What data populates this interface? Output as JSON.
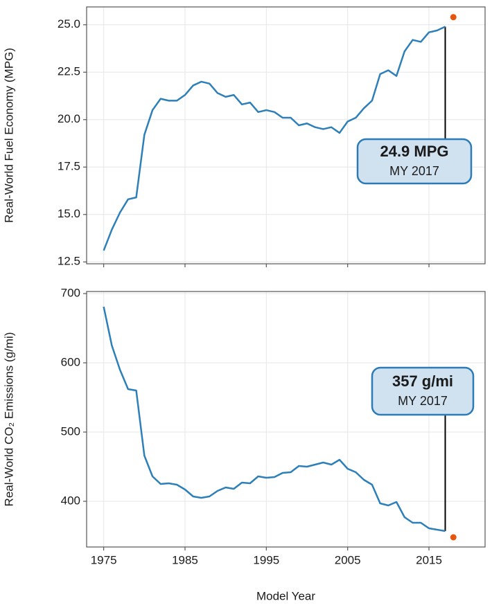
{
  "chart_data": [
    {
      "type": "line",
      "y_label": "Real-World Fuel Economy (MPG)",
      "x": [
        1975,
        1976,
        1977,
        1978,
        1979,
        1980,
        1981,
        1982,
        1983,
        1984,
        1985,
        1986,
        1987,
        1988,
        1989,
        1990,
        1991,
        1992,
        1993,
        1994,
        1995,
        1996,
        1997,
        1998,
        1999,
        2000,
        2001,
        2002,
        2003,
        2004,
        2005,
        2006,
        2007,
        2008,
        2009,
        2010,
        2011,
        2012,
        2013,
        2014,
        2015,
        2016,
        2017
      ],
      "series": [
        {
          "color": "#2c7fb8",
          "values": [
            13.1,
            14.2,
            15.1,
            15.8,
            15.9,
            19.2,
            20.5,
            21.1,
            21.0,
            21.0,
            21.3,
            21.8,
            22.0,
            21.9,
            21.4,
            21.2,
            21.3,
            20.8,
            20.9,
            20.4,
            20.5,
            20.4,
            20.1,
            20.1,
            19.7,
            19.8,
            19.6,
            19.5,
            19.6,
            19.3,
            19.9,
            20.1,
            20.6,
            21.0,
            22.4,
            22.6,
            22.3,
            23.6,
            24.2,
            24.1,
            24.6,
            24.7,
            24.9
          ]
        }
      ],
      "highlight": {
        "x": 2018,
        "y": 25.4,
        "color": "#e6550d"
      },
      "annotation": {
        "title": "24.9 MPG",
        "subtitle": "MY 2017"
      },
      "xlim": [
        1972.9,
        2021.9
      ],
      "xticks": [
        1975,
        1985,
        1995,
        2005,
        2015
      ],
      "show_xtick_labels": false,
      "ylim": [
        12.4,
        25.94
      ],
      "yticks": [
        12.5,
        {
          "value": 15,
          "label": "15.0"
        },
        17.5,
        {
          "value": 20,
          "label": "20.0"
        },
        22.5,
        {
          "value": 25,
          "label": "25.0"
        }
      ],
      "grid": true
    },
    {
      "type": "line",
      "y_label": "Real-World CO₂ Emissions (g/mi)",
      "x_label": "Model Year",
      "x": [
        1975,
        1976,
        1977,
        1978,
        1979,
        1980,
        1981,
        1982,
        1983,
        1984,
        1985,
        1986,
        1987,
        1988,
        1989,
        1990,
        1991,
        1992,
        1993,
        1994,
        1995,
        1996,
        1997,
        1998,
        1999,
        2000,
        2001,
        2002,
        2003,
        2004,
        2005,
        2006,
        2007,
        2008,
        2009,
        2010,
        2011,
        2012,
        2013,
        2014,
        2015,
        2016,
        2017
      ],
      "series": [
        {
          "color": "#2c7fb8",
          "values": [
            681,
            625,
            590,
            562,
            560,
            466,
            436,
            425,
            426,
            424,
            417,
            407,
            405,
            407,
            415,
            420,
            418,
            427,
            426,
            436,
            434,
            435,
            441,
            442,
            451,
            450,
            453,
            456,
            453,
            460,
            447,
            442,
            431,
            424,
            397,
            394,
            399,
            377,
            369,
            369,
            361,
            359,
            357
          ]
        }
      ],
      "highlight": {
        "x": 2018,
        "y": 348,
        "color": "#e6550d"
      },
      "annotation": {
        "title": "357 g/mi",
        "subtitle": "MY 2017"
      },
      "xlim": [
        1972.9,
        2021.9
      ],
      "xticks": [
        1975,
        1985,
        1995,
        2005,
        2015
      ],
      "show_xtick_labels": true,
      "ylim": [
        334,
        703
      ],
      "yticks": [
        400,
        500,
        600,
        700
      ],
      "grid": true
    }
  ]
}
